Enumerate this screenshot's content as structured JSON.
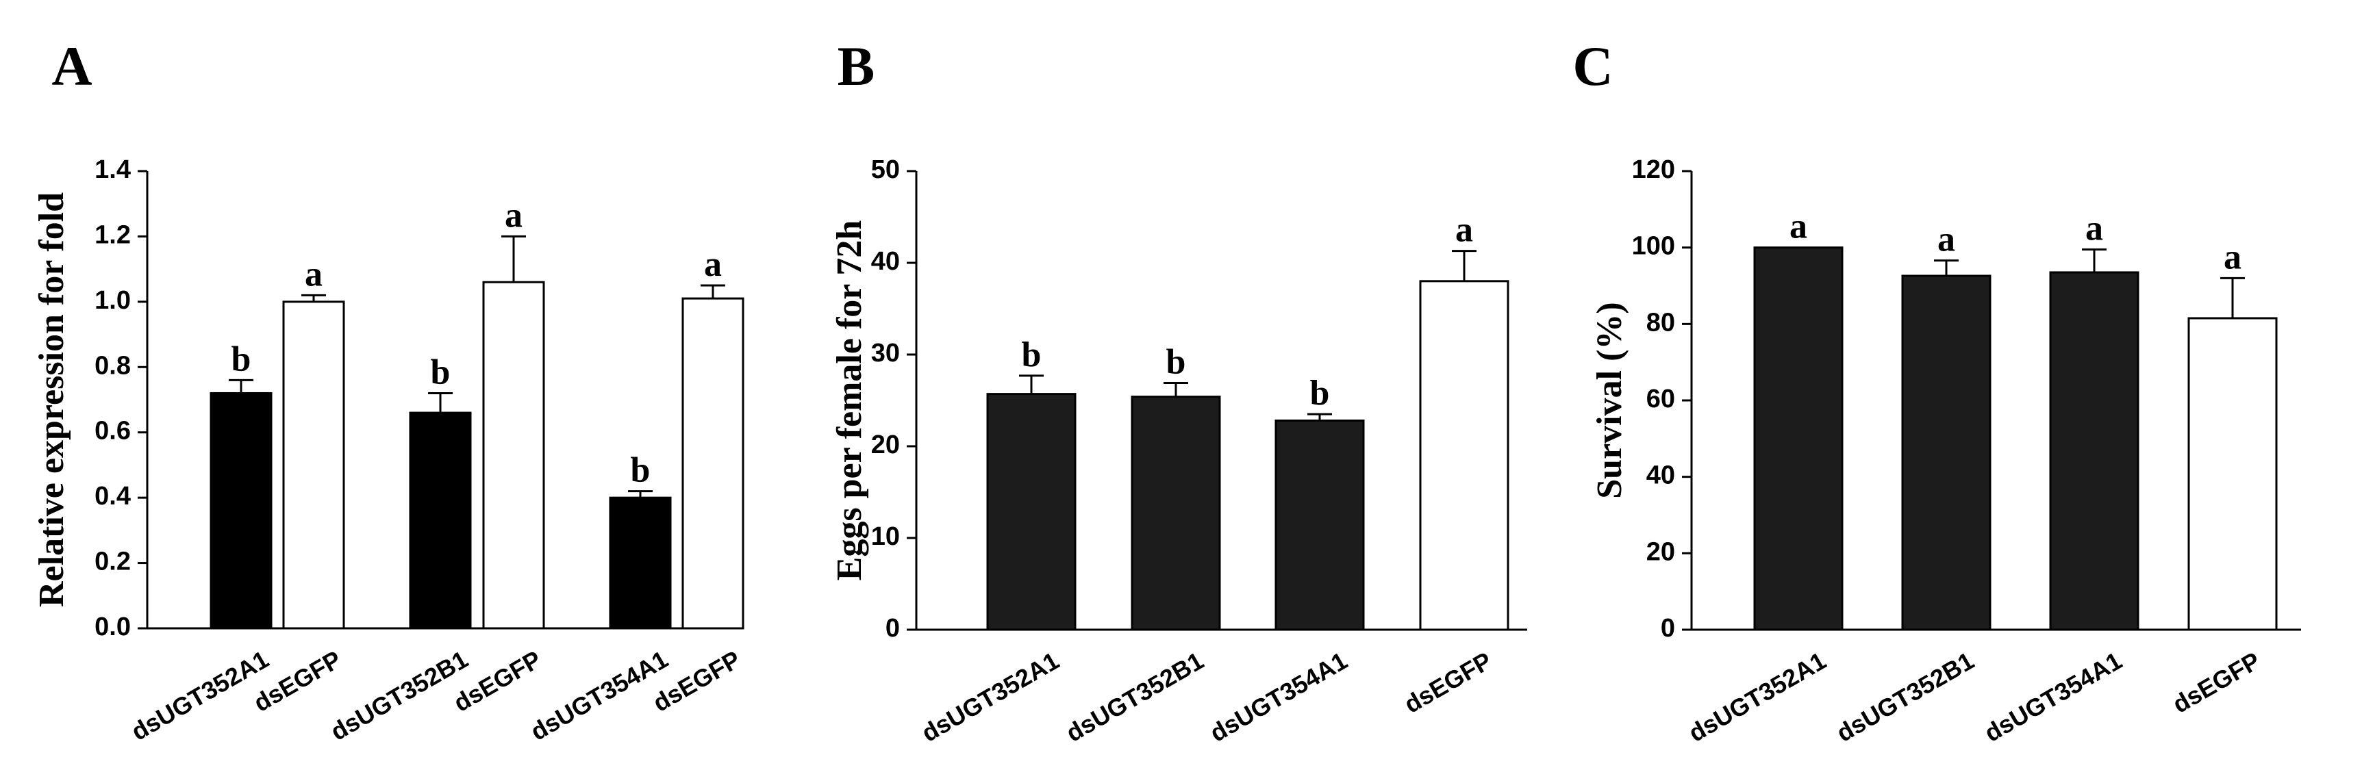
{
  "chart_data": [
    {
      "panel": "A",
      "type": "bar",
      "ylabel": "Relative expression for fold",
      "ylim": [
        0,
        1.4
      ],
      "yticks": [
        "0.0",
        "0.2",
        "0.4",
        "0.6",
        "0.8",
        "1.0",
        "1.2",
        "1.4"
      ],
      "categories": [
        "dsUGT352A1",
        "dsEGFP",
        "dsUGT352B1",
        "dsEGFP",
        "dsUGT354A1",
        "dsEGFP"
      ],
      "values": [
        0.72,
        1.0,
        0.66,
        1.06,
        0.4,
        1.01
      ],
      "errors": [
        0.04,
        0.02,
        0.06,
        0.14,
        0.02,
        0.04
      ],
      "labels": [
        "b",
        "a",
        "b",
        "a",
        "b",
        "a"
      ],
      "fills": [
        "#000000",
        "#ffffff",
        "#000000",
        "#ffffff",
        "#000000",
        "#ffffff"
      ]
    },
    {
      "panel": "B",
      "type": "bar",
      "ylabel": "Eggs per female for 72h",
      "ylim": [
        0,
        50
      ],
      "yticks": [
        "0",
        "10",
        "20",
        "30",
        "40",
        "50"
      ],
      "categories": [
        "dsUGT352A1",
        "dsUGT352B1",
        "dsUGT354A1",
        "dsEGFP"
      ],
      "values": [
        25.7,
        25.4,
        22.8,
        38.0
      ],
      "errors": [
        2.0,
        1.5,
        0.7,
        3.3
      ],
      "labels": [
        "b",
        "b",
        "b",
        "a"
      ],
      "fills": [
        "#1c1c1c",
        "#1c1c1c",
        "#1c1c1c",
        "#ffffff"
      ]
    },
    {
      "panel": "C",
      "type": "bar",
      "ylabel": "Survival (%)",
      "ylim": [
        0,
        120
      ],
      "yticks": [
        "0",
        "20",
        "40",
        "60",
        "80",
        "100",
        "120"
      ],
      "categories": [
        "dsUGT352A1",
        "dsUGT352B1",
        "dsUGT354A1",
        "dsEGFP"
      ],
      "values": [
        100,
        92.6,
        93.5,
        81.5
      ],
      "errors": [
        0,
        4.0,
        6.0,
        10.5
      ],
      "labels": [
        "a",
        "a",
        "a",
        "a"
      ],
      "fills": [
        "#1c1c1c",
        "#1c1c1c",
        "#1c1c1c",
        "#ffffff"
      ]
    }
  ]
}
